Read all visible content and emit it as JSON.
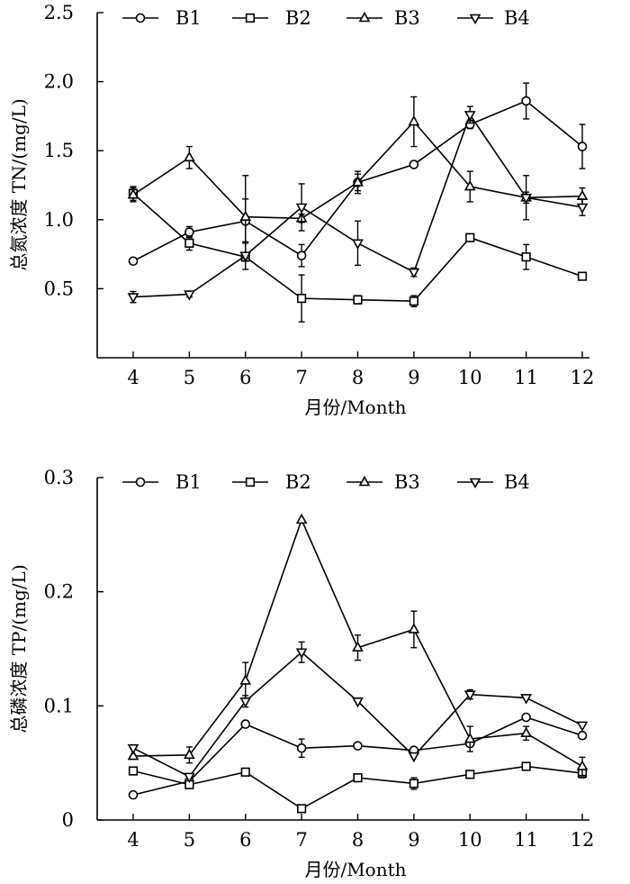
{
  "chart_data": [
    {
      "type": "line",
      "title": "",
      "xlabel": "月份/Month",
      "ylabel": "总氮浓度 TN/(mg/L)",
      "x": [
        4,
        5,
        6,
        7,
        8,
        9,
        10,
        11,
        12
      ],
      "xticks": [
        "4",
        "5",
        "6",
        "7",
        "8",
        "9",
        "10",
        "11",
        "12"
      ],
      "ylim": [
        0,
        2.5
      ],
      "yticks": [
        "0.5",
        "1.0",
        "1.5",
        "2.0",
        "2.5"
      ],
      "ytick_values": [
        0.5,
        1.0,
        1.5,
        2.0,
        2.5
      ],
      "series": [
        {
          "name": "B1",
          "marker": "circle",
          "values": [
            0.7,
            0.91,
            0.99,
            0.74,
            1.27,
            1.4,
            1.69,
            1.86,
            1.53
          ],
          "errors": [
            0,
            0.04,
            0.16,
            0.08,
            0.06,
            0.02,
            0.03,
            0.13,
            0.16
          ]
        },
        {
          "name": "B2",
          "marker": "square",
          "values": [
            1.19,
            0.83,
            0.73,
            0.43,
            0.42,
            0.41,
            0.87,
            0.73,
            0.59
          ],
          "errors": [
            0.05,
            0.05,
            0.03,
            0.17,
            0.03,
            0.04,
            0.01,
            0.09,
            0.01
          ]
        },
        {
          "name": "B3",
          "marker": "triangle-up",
          "values": [
            1.18,
            1.45,
            1.02,
            1.01,
            1.27,
            1.71,
            1.24,
            1.16,
            1.17
          ],
          "errors": [
            0.05,
            0.08,
            0.3,
            0.03,
            0.08,
            0.18,
            0.11,
            0.04,
            0.06
          ]
        },
        {
          "name": "B4",
          "marker": "triangle-down",
          "values": [
            0.44,
            0.46,
            0.74,
            1.09,
            0.83,
            0.62,
            1.76,
            1.16,
            1.09
          ],
          "errors": [
            0.04,
            0.02,
            0.1,
            0.17,
            0.16,
            0.03,
            0.06,
            0.16,
            0.06
          ]
        }
      ]
    },
    {
      "type": "line",
      "title": "",
      "xlabel": "月份/Month",
      "ylabel": "总磷浓度 TP/(mg/L)",
      "x": [
        4,
        5,
        6,
        7,
        8,
        9,
        10,
        11,
        12
      ],
      "xticks": [
        "4",
        "5",
        "6",
        "7",
        "8",
        "9",
        "10",
        "11",
        "12"
      ],
      "ylim": [
        0,
        0.3
      ],
      "yticks": [
        "0",
        "0.1",
        "0.2",
        "0.3"
      ],
      "ytick_values": [
        0,
        0.1,
        0.2,
        0.3
      ],
      "series": [
        {
          "name": "B1",
          "marker": "circle",
          "values": [
            0.022,
            0.034,
            0.084,
            0.063,
            0.065,
            0.061,
            0.067,
            0.09,
            0.074
          ],
          "errors": [
            0,
            0,
            0,
            0.008,
            0,
            0,
            0,
            0,
            0
          ]
        },
        {
          "name": "B2",
          "marker": "square",
          "values": [
            0.043,
            0.031,
            0.042,
            0.01,
            0.037,
            0.032,
            0.04,
            0.047,
            0.041
          ],
          "errors": [
            0,
            0,
            0,
            0,
            0.003,
            0.005,
            0,
            0,
            0.004
          ]
        },
        {
          "name": "B3",
          "marker": "triangle-up",
          "values": [
            0.056,
            0.057,
            0.122,
            0.263,
            0.151,
            0.167,
            0.071,
            0.076,
            0.047
          ],
          "errors": [
            0,
            0.007,
            0.016,
            0,
            0.011,
            0.016,
            0.011,
            0.006,
            0.008
          ]
        },
        {
          "name": "B4",
          "marker": "triangle-down",
          "values": [
            0.063,
            0.038,
            0.104,
            0.147,
            0.104,
            0.056,
            0.11,
            0.107,
            0.083
          ],
          "errors": [
            0,
            0,
            0.005,
            0.009,
            0,
            0,
            0.004,
            0,
            0
          ]
        }
      ]
    }
  ]
}
